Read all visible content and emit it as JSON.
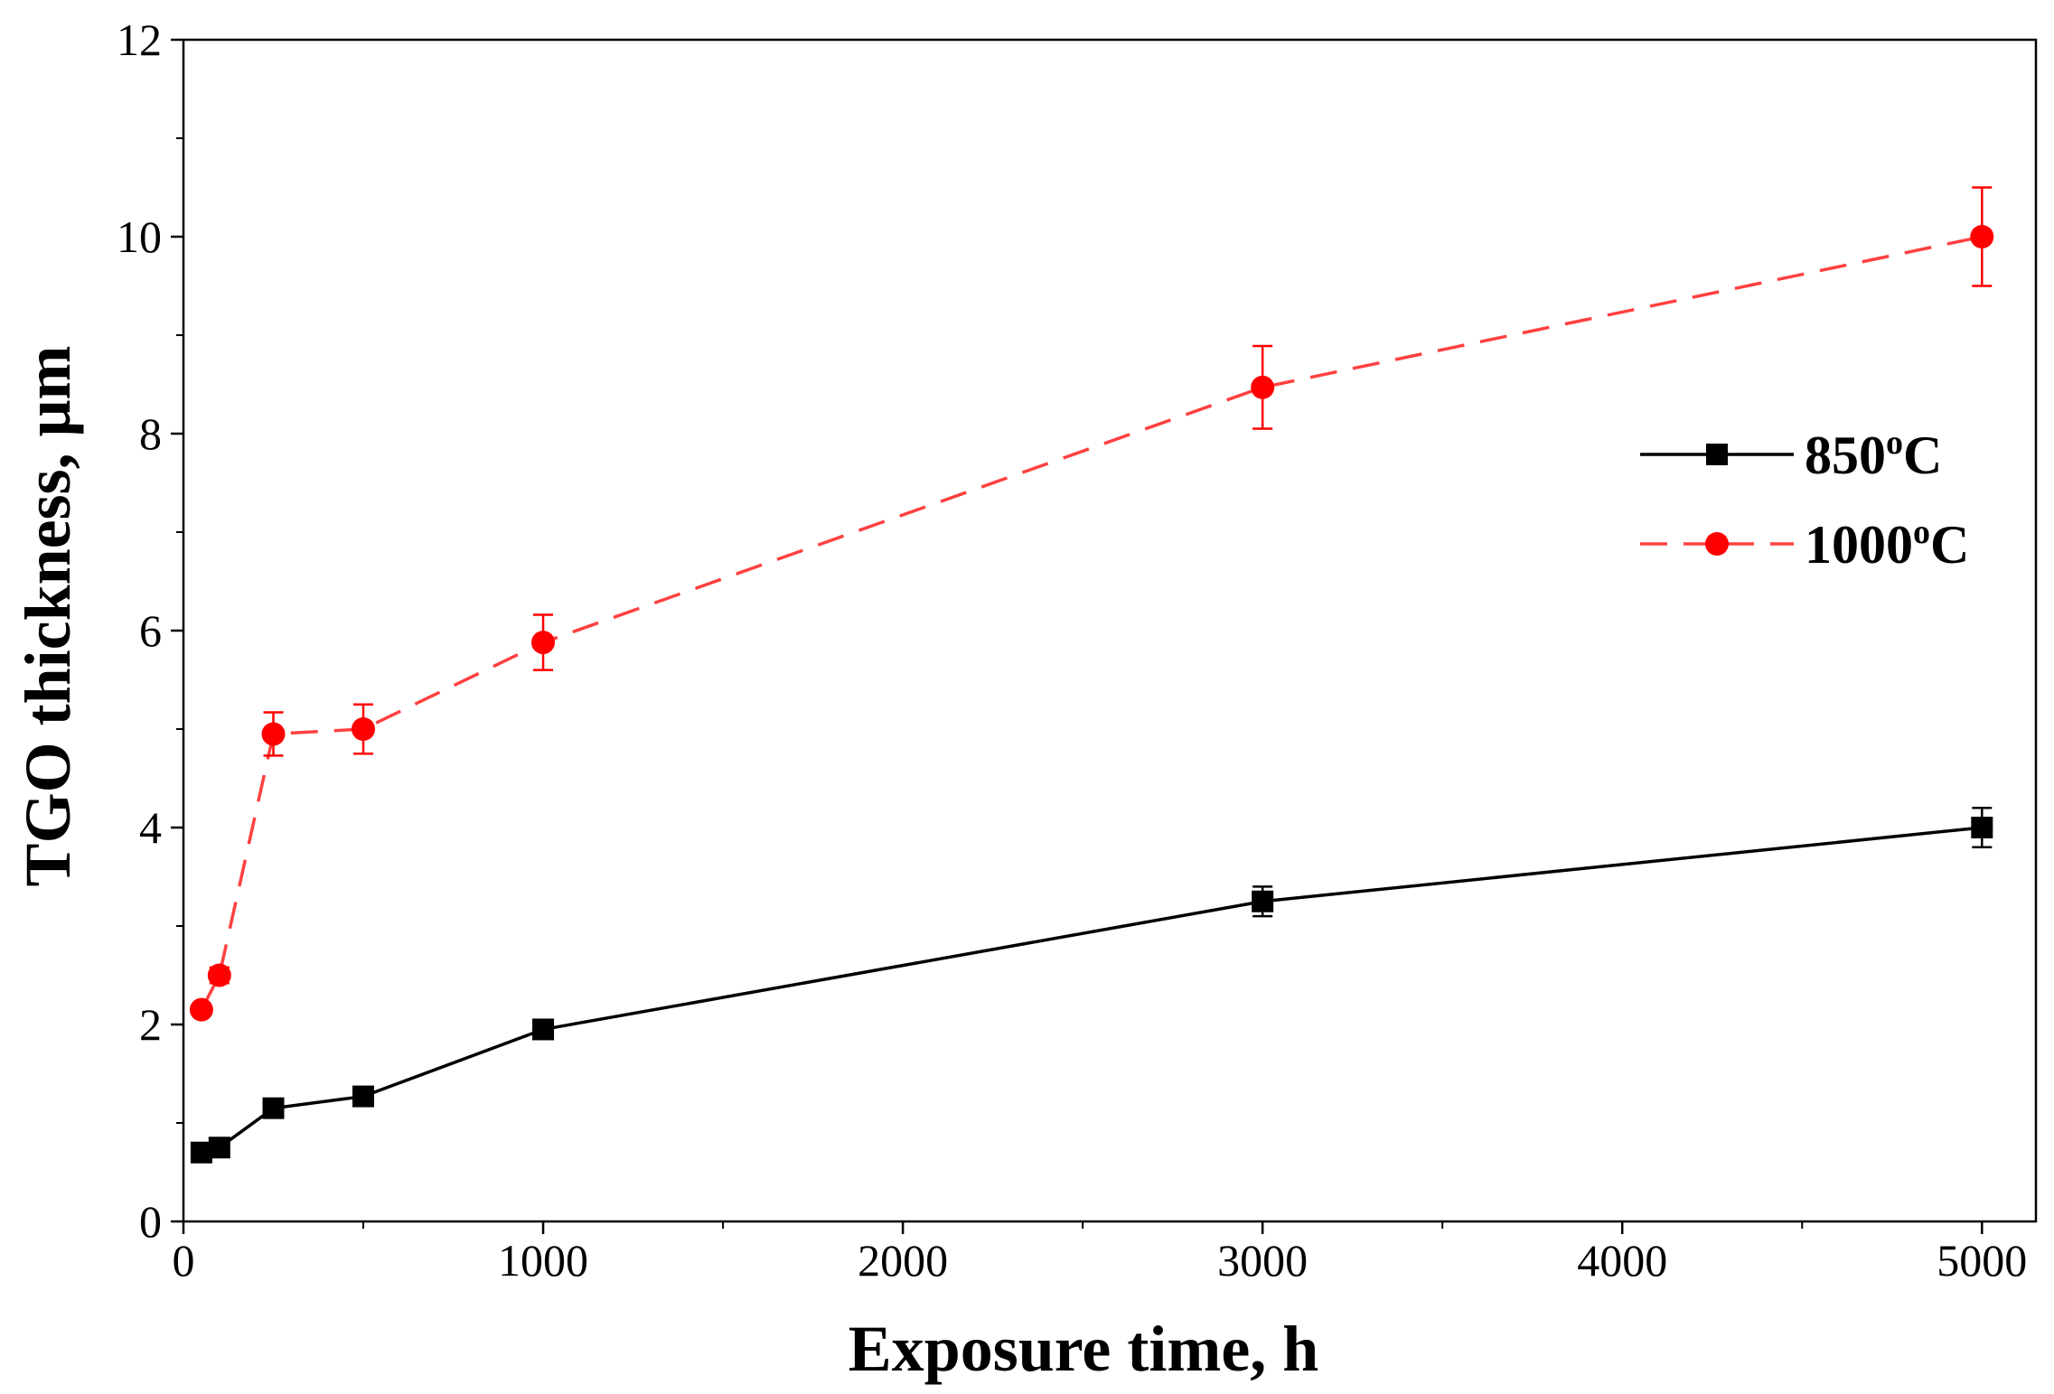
{
  "chart_data": {
    "type": "line",
    "xlabel": "Exposure time, h",
    "ylabel": "TGO thickness, μm",
    "xlim": [
      0,
      5150
    ],
    "ylim": [
      0,
      12
    ],
    "xticks": [
      0,
      1000,
      2000,
      3000,
      4000,
      5000
    ],
    "yticks": [
      0,
      2,
      4,
      6,
      8,
      10,
      12
    ],
    "x_minor_step": 500,
    "y_minor_step": 1,
    "grid": false,
    "legend_position": "right",
    "series": [
      {
        "name": "850",
        "unit_sup": "o",
        "unit": "C",
        "color": "#000000",
        "line_style": "solid",
        "marker": "square",
        "x": [
          50,
          100,
          250,
          500,
          1000,
          3000,
          5000
        ],
        "y": [
          0.7,
          0.75,
          1.15,
          1.27,
          1.95,
          3.25,
          4.0
        ],
        "error": [
          0.05,
          0.05,
          0.07,
          0.06,
          0.07,
          0.15,
          0.2
        ]
      },
      {
        "name": "1000",
        "unit_sup": "o",
        "unit": "C",
        "color": "#ff0000",
        "line_color": "#ff4040",
        "line_style": "dashed",
        "marker": "circle",
        "x": [
          50,
          100,
          250,
          500,
          1000,
          3000,
          5000
        ],
        "y": [
          2.15,
          2.5,
          4.95,
          5.0,
          5.88,
          8.47,
          10.0
        ],
        "error": [
          0.05,
          0.08,
          0.22,
          0.25,
          0.28,
          0.42,
          0.5
        ]
      }
    ]
  }
}
